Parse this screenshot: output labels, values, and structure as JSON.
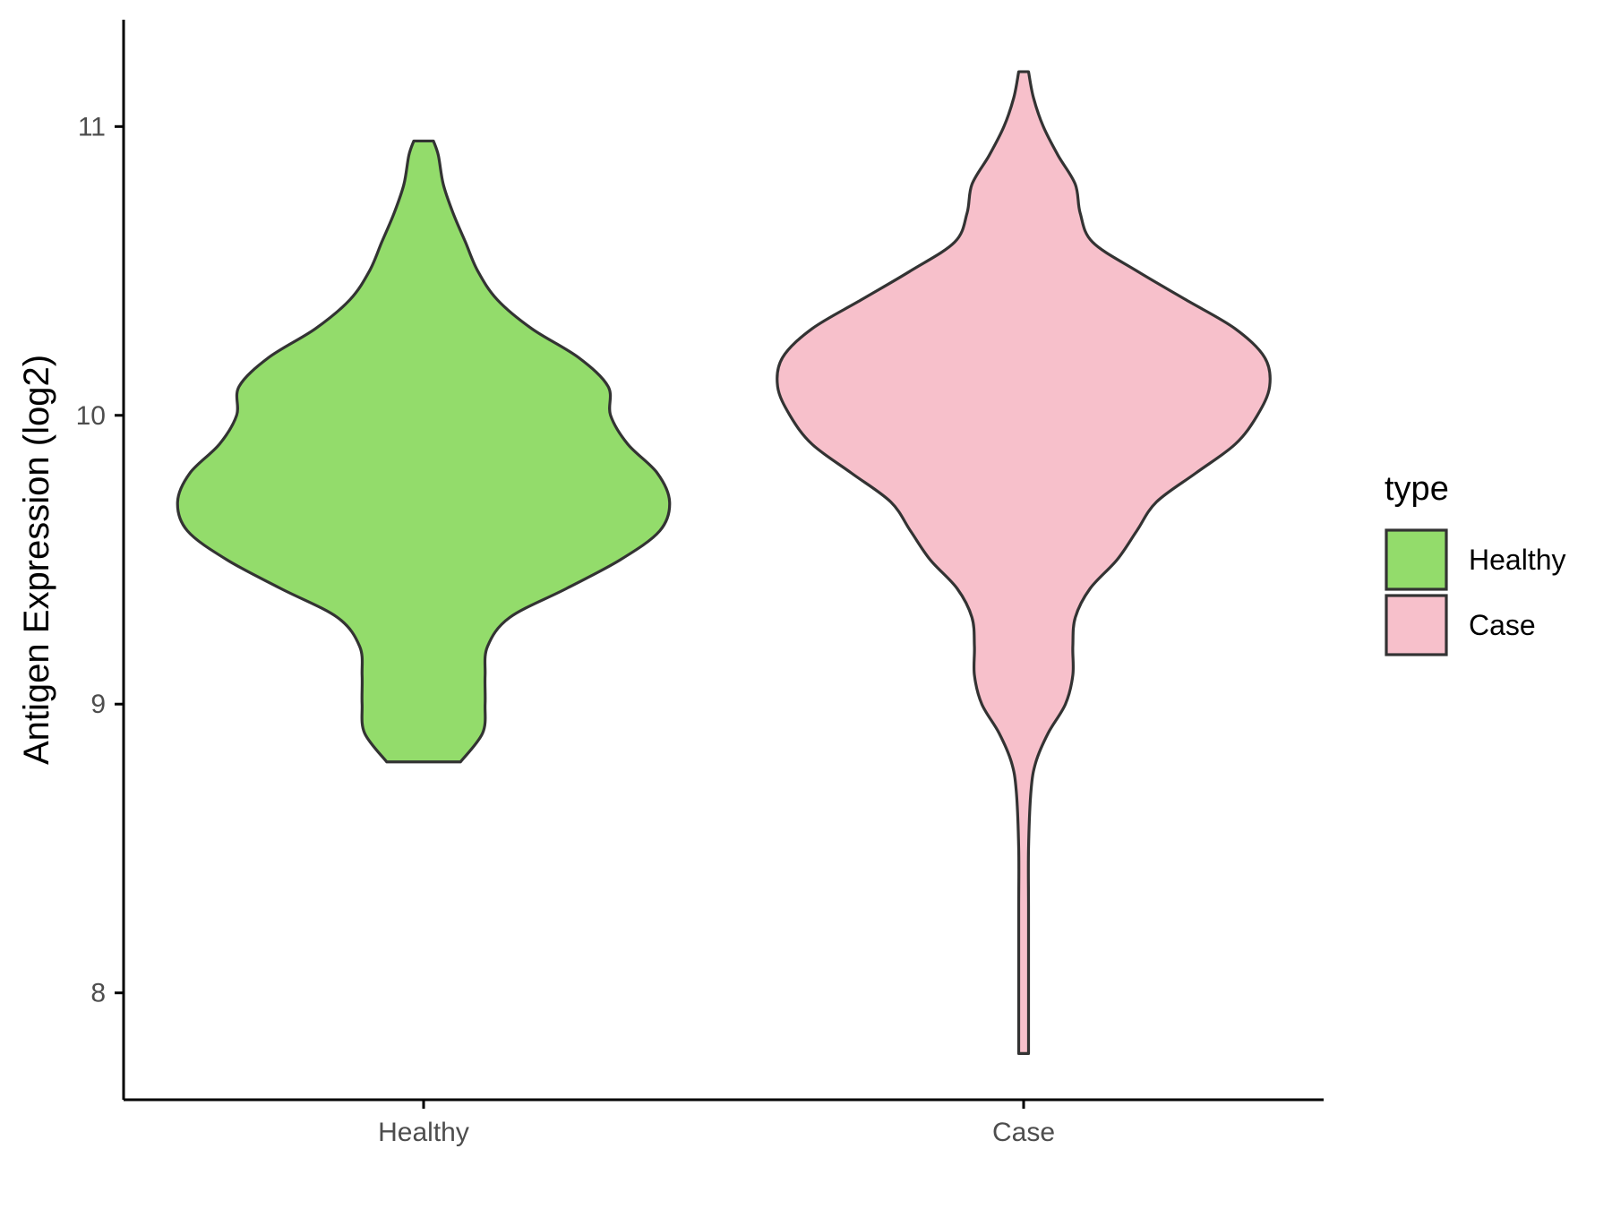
{
  "chart_data": {
    "type": "violin",
    "title": "",
    "xlabel": "",
    "ylabel": "Antigen Expression (log2)",
    "ylim": [
      7.63,
      11.37
    ],
    "yticks": [
      8,
      9,
      10,
      11
    ],
    "categories": [
      "Healthy",
      "Case"
    ],
    "grid": false,
    "legend": {
      "title": "type",
      "position": "right",
      "entries": [
        "Healthy",
        "Case"
      ]
    },
    "series": [
      {
        "name": "Healthy",
        "color": "#93dc6b",
        "min": 8.8,
        "max": 10.95,
        "density_profile": [
          [
            8.8,
            0.15
          ],
          [
            8.9,
            0.24
          ],
          [
            9.0,
            0.25
          ],
          [
            9.1,
            0.25
          ],
          [
            9.2,
            0.26
          ],
          [
            9.3,
            0.35
          ],
          [
            9.4,
            0.58
          ],
          [
            9.5,
            0.8
          ],
          [
            9.6,
            0.96
          ],
          [
            9.7,
            1.0
          ],
          [
            9.8,
            0.95
          ],
          [
            9.9,
            0.83
          ],
          [
            10.0,
            0.76
          ],
          [
            10.1,
            0.75
          ],
          [
            10.2,
            0.63
          ],
          [
            10.3,
            0.44
          ],
          [
            10.4,
            0.3
          ],
          [
            10.5,
            0.22
          ],
          [
            10.6,
            0.17
          ],
          [
            10.7,
            0.12
          ],
          [
            10.8,
            0.08
          ],
          [
            10.9,
            0.06
          ],
          [
            10.95,
            0.04
          ]
        ]
      },
      {
        "name": "Case",
        "color": "#f7c0cb",
        "min": 7.79,
        "max": 11.19,
        "density_profile": [
          [
            7.79,
            0.02
          ],
          [
            7.9,
            0.02
          ],
          [
            8.0,
            0.02
          ],
          [
            8.1,
            0.02
          ],
          [
            8.3,
            0.02
          ],
          [
            8.5,
            0.02
          ],
          [
            8.7,
            0.03
          ],
          [
            8.8,
            0.05
          ],
          [
            8.9,
            0.1
          ],
          [
            9.0,
            0.17
          ],
          [
            9.1,
            0.2
          ],
          [
            9.2,
            0.2
          ],
          [
            9.3,
            0.21
          ],
          [
            9.4,
            0.27
          ],
          [
            9.5,
            0.38
          ],
          [
            9.6,
            0.46
          ],
          [
            9.7,
            0.54
          ],
          [
            9.8,
            0.7
          ],
          [
            9.9,
            0.86
          ],
          [
            10.0,
            0.95
          ],
          [
            10.1,
            1.0
          ],
          [
            10.2,
            0.98
          ],
          [
            10.3,
            0.86
          ],
          [
            10.4,
            0.66
          ],
          [
            10.5,
            0.46
          ],
          [
            10.6,
            0.28
          ],
          [
            10.7,
            0.23
          ],
          [
            10.8,
            0.21
          ],
          [
            10.9,
            0.14
          ],
          [
            11.0,
            0.08
          ],
          [
            11.1,
            0.04
          ],
          [
            11.19,
            0.02
          ]
        ]
      }
    ]
  }
}
